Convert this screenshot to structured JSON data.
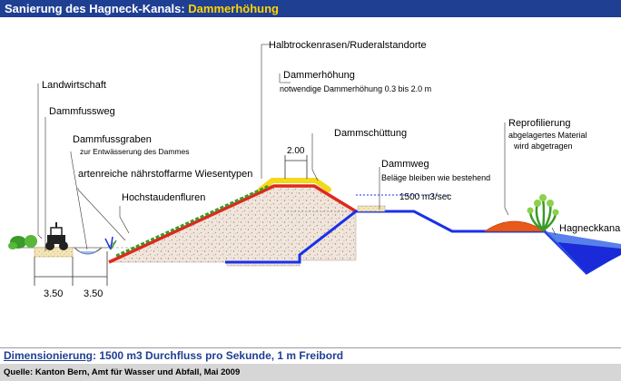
{
  "header": {
    "title_prefix": "Sanierung des Hagneck-Kanals:",
    "title_highlight": "Dammerhöhung"
  },
  "labels": {
    "halbtrocken": "Halbtrockenrasen/Ruderalstandorte",
    "dammerhoehung": "Dammerhöhung",
    "dammerhoehung_note": "notwendige Dammerhöhung 0.3 bis 2.0 m",
    "landwirtschaft": "Landwirtschaft",
    "dammfussweg": "Dammfussweg",
    "dammfussgraben": "Dammfussgraben",
    "dammfussgraben_note": "zur Entwässerung des Dammes",
    "wiesentypen": "artenreiche nährstoffarme Wiesentypen",
    "hochstauden": "Hochstaudenfluren",
    "dammschuettung": "Dammschüttung",
    "dammweg": "Dammweg",
    "dammweg_note": "Beläge bleiben wie bestehend",
    "durchfluss": "1500 m3/sec",
    "reprofilierung": "Reprofilierung",
    "repro_note1": "abgelagertes Material",
    "repro_note2": "wird abgetragen",
    "hagneckkanal": "Hagneckkanal",
    "dim_top": "2.00",
    "dim_left1": "3.50",
    "dim_left2": "3.50"
  },
  "footer": {
    "dim_title": "Dimensionierung",
    "dim_text": ": 1500 m3 Durchfluss pro Sekunde, 1 m Freibord",
    "source": "Quelle: Kanton Bern, Amt für Wasser und Abfall, Mai 2009"
  },
  "colors": {
    "title_bg": "#1f3f93",
    "title_highlight": "#ffd400",
    "dam_red": "#e0281c",
    "water_blue": "#1a30e8",
    "vegetation_green": "#3a9a2a",
    "sediment_orange": "#e85a1a",
    "footer_bg": "#d6d6d6"
  }
}
